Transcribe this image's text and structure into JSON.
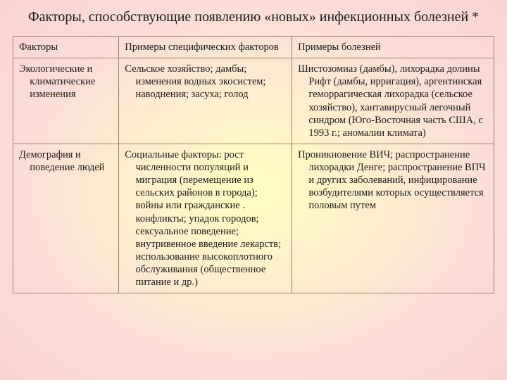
{
  "title": "Факторы, способствующие появлению «новых» инфекционных болезней *",
  "table": {
    "columns": [
      "Факторы",
      "Примеры специфических факторов",
      "Примеры болезней"
    ],
    "rows": [
      {
        "c1": "Экологические и климатические изменения",
        "c2": "Сельское хозяйство; дамбы; изменения водных экосистем; наводнения; засуха; голод",
        "c3": "Шистозомиаз (дамбы), лихорадка долины Рифт (дамбы, ирригация), аргентинская геморрагическая лихорадка (сельское хозяйство), хантавирусный легочный синдром (Юго-Восточная часть США, с 1993 г.; аномалии климата)"
      },
      {
        "c1": "Демография и поведение людей",
        "c2": "Социальные факторы: рост численности популяций и миграция (перемещение из сельских районов в города); войны или гражданские . конфликты; упадок городов; сексуальное поведение; внутривенное введение лекарств; использование высокоплотного обслуживания (общественное питание и др.)",
        "c3": "Проникновение ВИЧ; распространение лихорадки Денге; распространение ВПЧ и других заболеваний, инфицирование возбудителями которых осуществляется половым путем"
      }
    ]
  },
  "style": {
    "border_color": "#a97c6c",
    "title_fontsize": 20,
    "cell_fontsize": 14.5,
    "background_gradient": [
      "#fffec0",
      "#fef0cc",
      "#fbdcd8",
      "#f9d4d2"
    ]
  }
}
